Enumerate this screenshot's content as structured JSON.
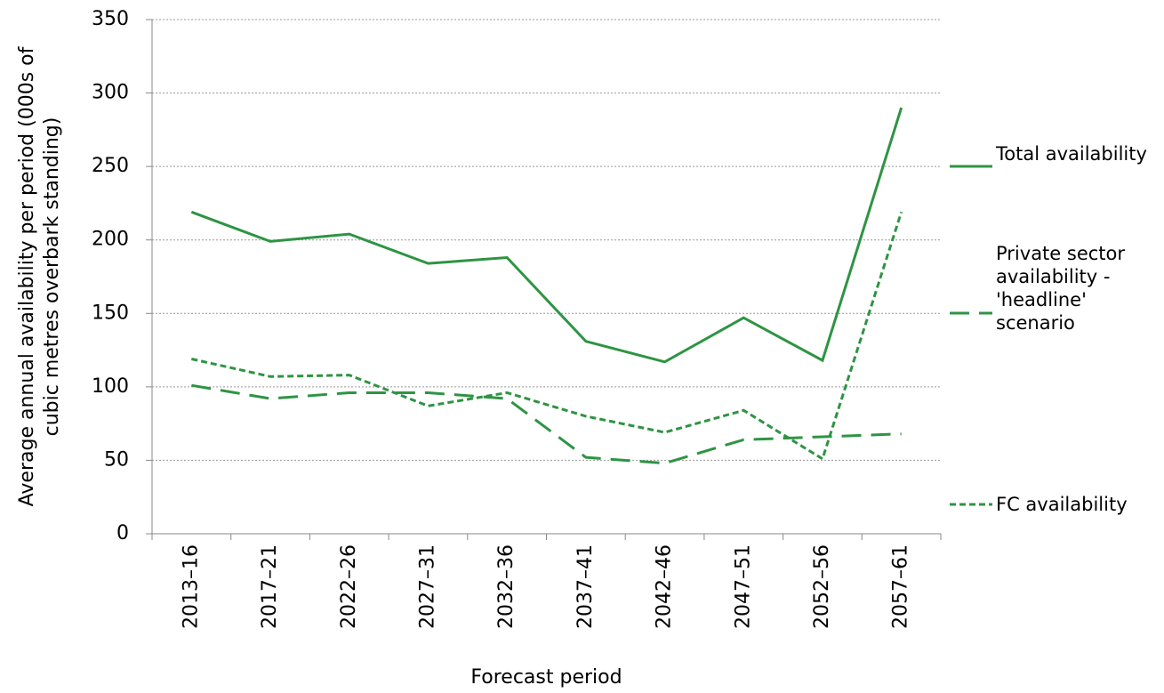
{
  "chart_data": {
    "type": "line",
    "xlabel": "Forecast period",
    "ylabel": "Average annual availability per period (000s of cubic metres overbark standing)",
    "categories": [
      "2013–16",
      "2017–21",
      "2022–26",
      "2027–31",
      "2032–36",
      "2037–41",
      "2042–46",
      "2047–51",
      "2052–56",
      "2057–61"
    ],
    "series": [
      {
        "name": "Total availability",
        "color": "#2e9443",
        "dash": "solid",
        "values": [
          219,
          199,
          204,
          184,
          188,
          131,
          117,
          147,
          118,
          290
        ]
      },
      {
        "name": "Private sector availability - 'headline' scenario",
        "color": "#2e9443",
        "dash": "long",
        "values": [
          101,
          92,
          96,
          96,
          92,
          52,
          48,
          64,
          66,
          68
        ]
      },
      {
        "name": "FC availability",
        "color": "#2e9443",
        "dash": "short",
        "values": [
          119,
          107,
          108,
          87,
          96,
          80,
          69,
          84,
          51,
          219
        ]
      }
    ],
    "ylim": [
      0,
      350
    ],
    "yticks": [
      0,
      50,
      100,
      150,
      200,
      250,
      300,
      350
    ],
    "grid": true,
    "legend": "right"
  }
}
